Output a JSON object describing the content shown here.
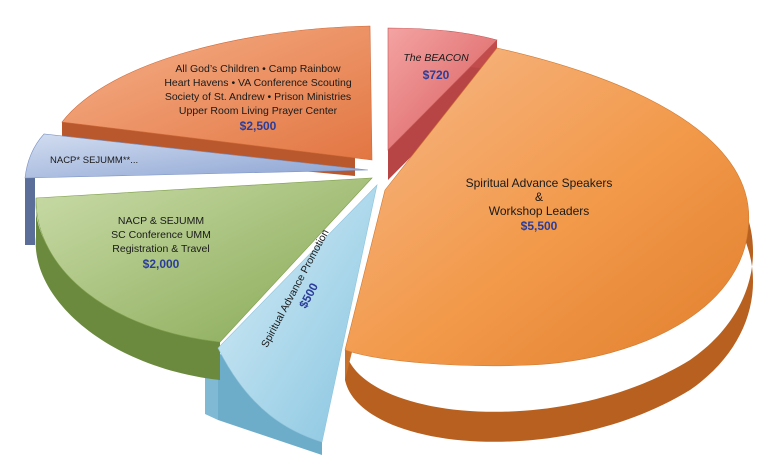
{
  "chart_data": {
    "type": "pie",
    "title": "",
    "slices": [
      {
        "key": "beacon",
        "lines": [
          "The BEACON"
        ],
        "value_label": "$720",
        "value": 720,
        "color": "#e57373"
      },
      {
        "key": "speakers",
        "lines": [
          "Spiritual Advance Speakers",
          "&",
          "Workshop Leaders"
        ],
        "value_label": "$5,500",
        "value": 5500,
        "color": "#f2994a"
      },
      {
        "key": "promotion",
        "lines": [
          "Spiritual Advance Promotion"
        ],
        "value_label": "$500",
        "value": 500,
        "color": "#a8d8ec"
      },
      {
        "key": "nacp_reg",
        "lines": [
          "NACP & SEJUMM",
          "SC Conference UMM",
          "Registration & Travel"
        ],
        "value_label": "$2,000",
        "value": 2000,
        "color": "#9bbb6a"
      },
      {
        "key": "nacp_small",
        "lines": [
          "NACP* SEJUMM**..."
        ],
        "value_label": "",
        "value": 300,
        "color": "#a9bde0"
      },
      {
        "key": "ministries",
        "lines": [
          "All God’s Children • Camp Rainbow",
          "Heart Havens • VA Conference Scouting",
          "Society of St. Andrew • Prison Ministries",
          "Upper Room Living  Prayer Center"
        ],
        "value_label": "$2,500",
        "value": 2500,
        "color": "#ee8c5c"
      }
    ]
  }
}
